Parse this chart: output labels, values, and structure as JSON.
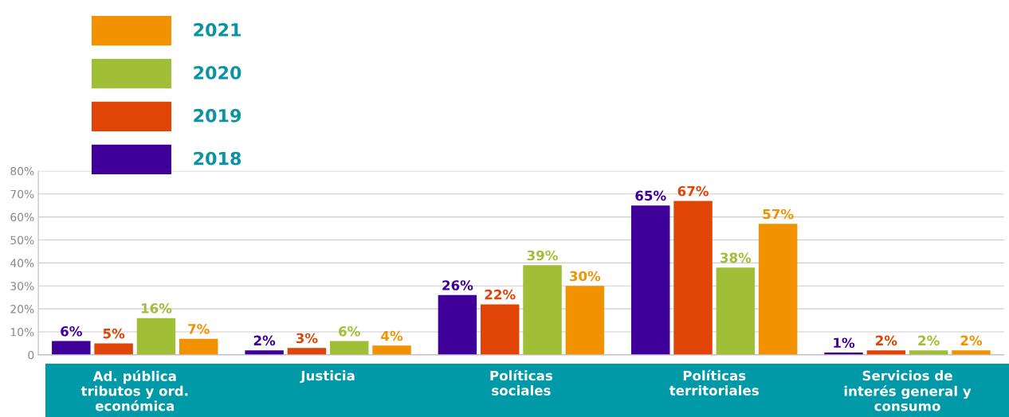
{
  "chart_data": {
    "type": "bar",
    "categories": [
      "Ad. pública\ntributos y ord.\neconómica",
      "Justicia",
      "Políticas\nsociales",
      "Políticas\nterritoriales",
      "Servicios de\ninterés general y\nconsumo"
    ],
    "series": [
      {
        "name": "2018",
        "color": "#3f0099",
        "values": [
          6,
          2,
          26,
          65,
          1
        ],
        "value_labels": [
          "6%",
          "2%",
          "26%",
          "65%",
          "1%"
        ]
      },
      {
        "name": "2019",
        "color": "#e04406",
        "values": [
          5,
          3,
          22,
          67,
          2
        ],
        "value_labels": [
          "5%",
          "3%",
          "22%",
          "67%",
          "2%"
        ]
      },
      {
        "name": "2020",
        "color": "#a0bf36",
        "values": [
          16,
          6,
          39,
          38,
          2
        ],
        "value_labels": [
          "16%",
          "6%",
          "39%",
          "38%",
          "2%"
        ]
      },
      {
        "name": "2021",
        "color": "#f39200",
        "values": [
          7,
          4,
          30,
          57,
          2
        ],
        "value_labels": [
          "7%",
          "4%",
          "30%",
          "57%",
          "2%"
        ]
      }
    ],
    "ylim": [
      0,
      80
    ],
    "yticks": [
      0,
      {
        "value": 10,
        "label": "10%"
      },
      {
        "value": 20,
        "label": "20%"
      },
      {
        "value": 30,
        "label": "30%"
      },
      {
        "value": 40,
        "label": "40%"
      },
      {
        "value": 50,
        "label": "50%"
      },
      {
        "value": 60,
        "label": "60%"
      },
      {
        "value": 70,
        "label": "70%"
      },
      {
        "value": 80,
        "label": "80%"
      }
    ],
    "grid": "y",
    "legend": "top left"
  }
}
